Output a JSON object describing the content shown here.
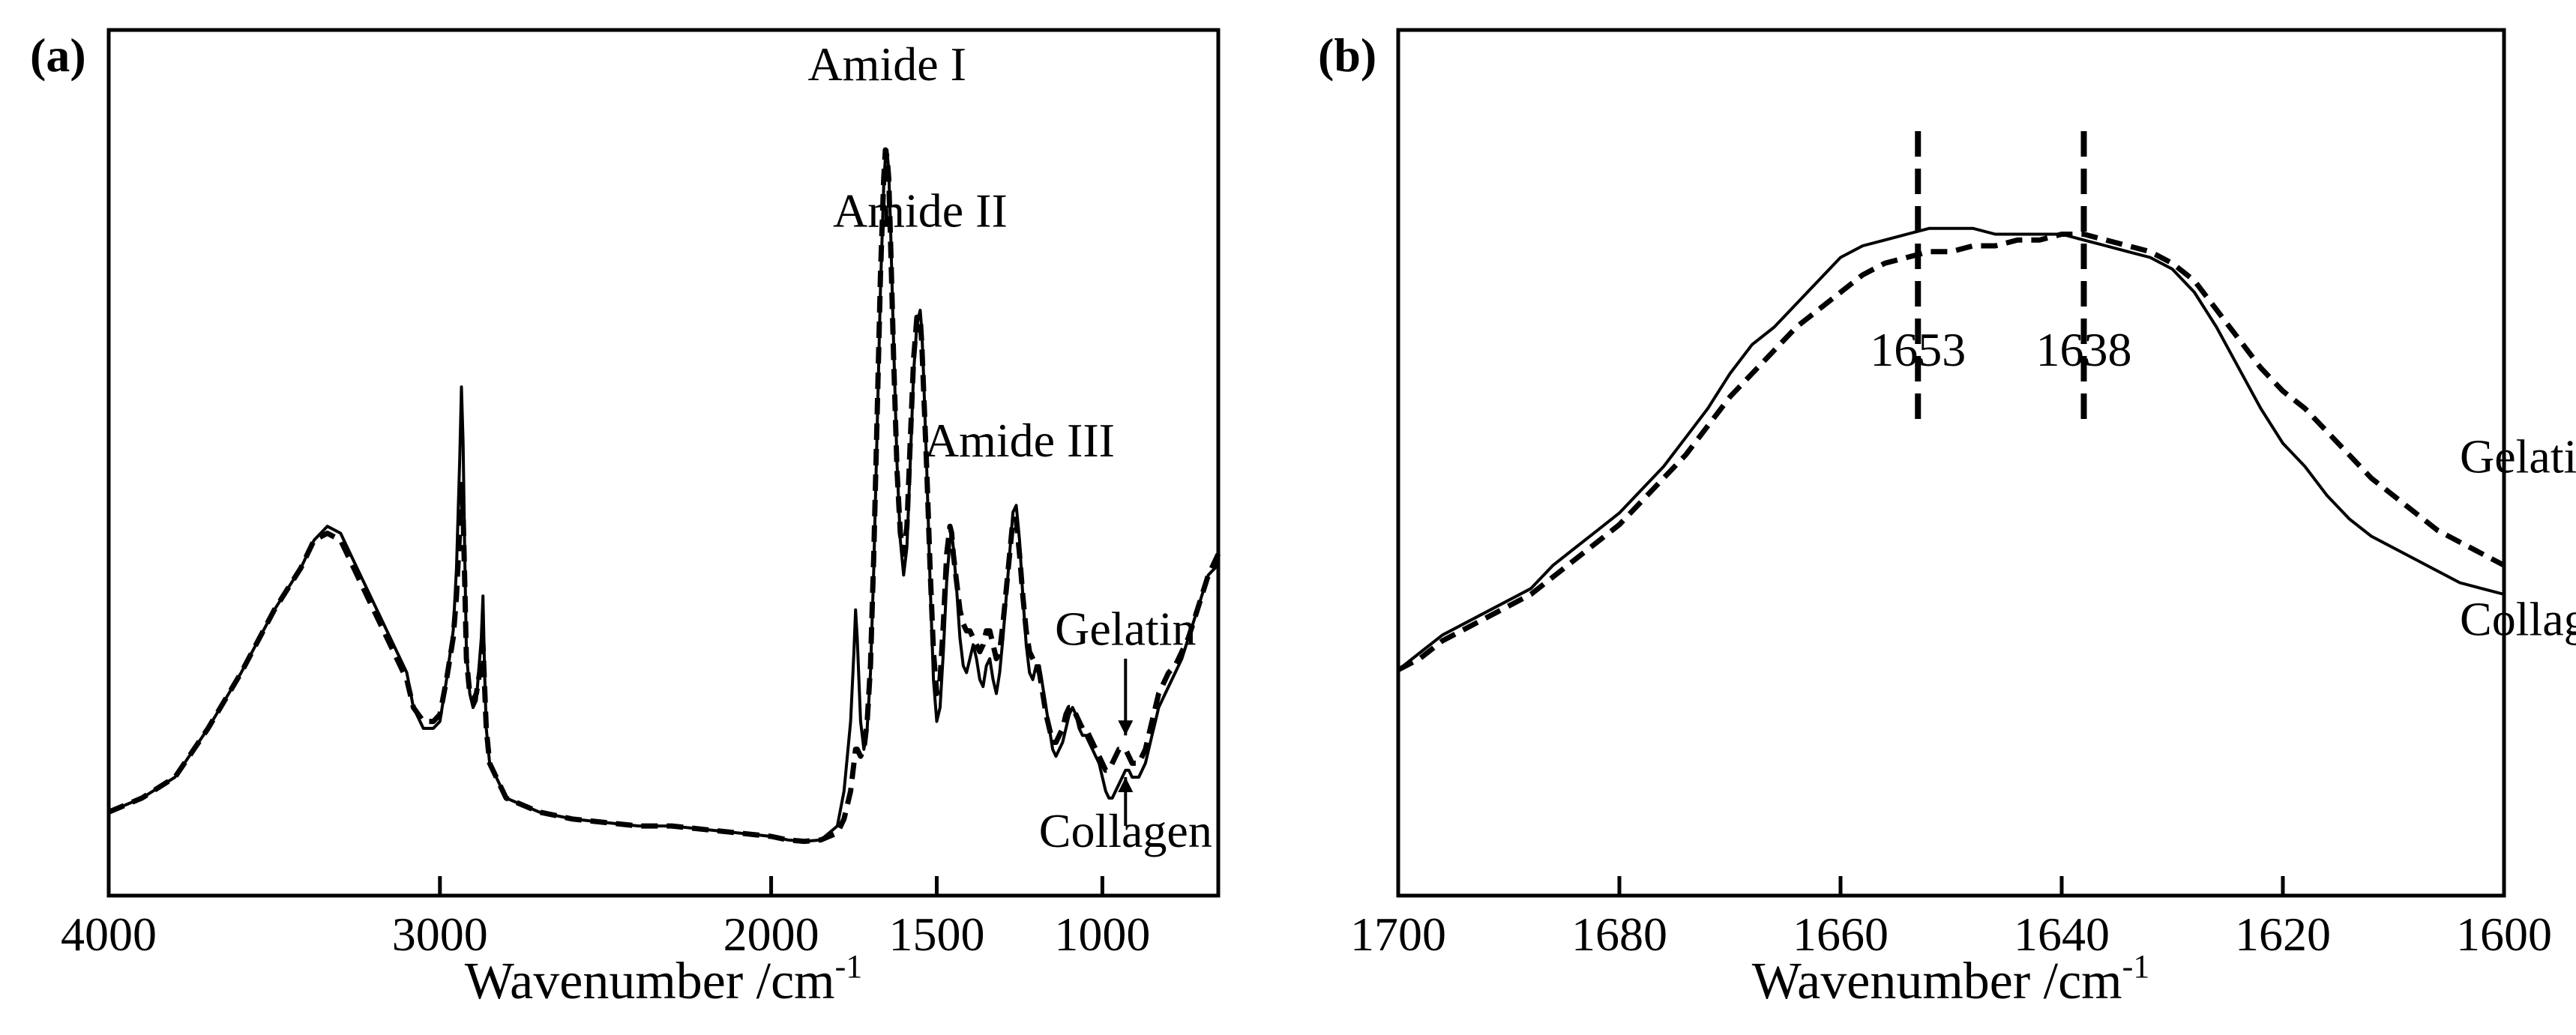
{
  "chart_data": [
    {
      "panel": "(a)",
      "type": "line",
      "xlabel": "Wavenumber /cm",
      "xlabel_sup": "-1",
      "ylabel": "",
      "x_reversed": true,
      "xlim": [
        4000,
        650
      ],
      "ylim": [
        0,
        1.0
      ],
      "xticks": [
        4000,
        3000,
        2000,
        1500,
        1000
      ],
      "tick_labels": [
        "4000",
        "3000",
        "2000",
        "1500",
        "1000"
      ],
      "series": [
        {
          "name": "Collagen",
          "style": "solid",
          "x": [
            4000,
            3900,
            3800,
            3700,
            3600,
            3500,
            3420,
            3380,
            3340,
            3300,
            3280,
            3250,
            3200,
            3150,
            3100,
            3080,
            3050,
            3020,
            3000,
            2980,
            2960,
            2950,
            2940,
            2935,
            2930,
            2925,
            2920,
            2910,
            2900,
            2890,
            2880,
            2875,
            2870,
            2865,
            2860,
            2850,
            2800,
            2700,
            2600,
            2500,
            2400,
            2300,
            2200,
            2100,
            2000,
            1950,
            1900,
            1850,
            1800,
            1780,
            1760,
            1750,
            1745,
            1740,
            1730,
            1720,
            1710,
            1700,
            1690,
            1680,
            1670,
            1660,
            1655,
            1650,
            1645,
            1640,
            1630,
            1620,
            1610,
            1600,
            1590,
            1580,
            1570,
            1560,
            1550,
            1545,
            1540,
            1530,
            1520,
            1510,
            1500,
            1490,
            1480,
            1470,
            1460,
            1455,
            1450,
            1440,
            1430,
            1420,
            1410,
            1400,
            1390,
            1380,
            1370,
            1360,
            1350,
            1340,
            1330,
            1320,
            1310,
            1300,
            1290,
            1280,
            1270,
            1260,
            1250,
            1240,
            1230,
            1220,
            1210,
            1200,
            1190,
            1180,
            1170,
            1160,
            1150,
            1140,
            1130,
            1120,
            1110,
            1100,
            1090,
            1080,
            1070,
            1060,
            1050,
            1040,
            1030,
            1020,
            1010,
            1000,
            990,
            980,
            970,
            960,
            950,
            940,
            930,
            920,
            910,
            900,
            890,
            880,
            870,
            860,
            850,
            840,
            830,
            820,
            810,
            800,
            780,
            760,
            740,
            720,
            700,
            680,
            660,
            650
          ],
          "y": [
            0.05,
            0.07,
            0.1,
            0.17,
            0.25,
            0.34,
            0.4,
            0.44,
            0.46,
            0.45,
            0.43,
            0.4,
            0.35,
            0.3,
            0.25,
            0.2,
            0.17,
            0.17,
            0.18,
            0.24,
            0.31,
            0.4,
            0.56,
            0.66,
            0.58,
            0.42,
            0.28,
            0.22,
            0.2,
            0.21,
            0.27,
            0.3,
            0.36,
            0.25,
            0.17,
            0.12,
            0.07,
            0.05,
            0.04,
            0.035,
            0.03,
            0.03,
            0.025,
            0.02,
            0.015,
            0.01,
            0.008,
            0.01,
            0.03,
            0.08,
            0.18,
            0.28,
            0.34,
            0.3,
            0.18,
            0.14,
            0.17,
            0.25,
            0.4,
            0.6,
            0.8,
            0.95,
            0.99,
            1.0,
            0.97,
            0.9,
            0.72,
            0.55,
            0.44,
            0.39,
            0.43,
            0.55,
            0.68,
            0.75,
            0.77,
            0.74,
            0.68,
            0.54,
            0.38,
            0.24,
            0.18,
            0.2,
            0.28,
            0.38,
            0.44,
            0.45,
            0.43,
            0.37,
            0.3,
            0.26,
            0.25,
            0.27,
            0.29,
            0.27,
            0.24,
            0.23,
            0.26,
            0.27,
            0.24,
            0.22,
            0.25,
            0.3,
            0.36,
            0.42,
            0.48,
            0.49,
            0.44,
            0.36,
            0.29,
            0.25,
            0.24,
            0.26,
            0.26,
            0.23,
            0.2,
            0.17,
            0.14,
            0.13,
            0.14,
            0.15,
            0.17,
            0.19,
            0.2,
            0.19,
            0.17,
            0.16,
            0.16,
            0.15,
            0.14,
            0.13,
            0.12,
            0.1,
            0.08,
            0.07,
            0.07,
            0.08,
            0.09,
            0.1,
            0.11,
            0.11,
            0.1,
            0.1,
            0.1,
            0.11,
            0.12,
            0.14,
            0.16,
            0.18,
            0.2,
            0.21,
            0.22,
            0.23,
            0.25,
            0.27,
            0.3,
            0.33,
            0.36,
            0.39,
            0.4,
            0.41
          ]
        },
        {
          "name": "Gelatin",
          "style": "dashed",
          "x": [
            4000,
            3900,
            3800,
            3700,
            3600,
            3500,
            3420,
            3380,
            3340,
            3300,
            3280,
            3250,
            3200,
            3150,
            3100,
            3080,
            3050,
            3020,
            3000,
            2980,
            2960,
            2950,
            2940,
            2935,
            2930,
            2925,
            2920,
            2910,
            2900,
            2890,
            2880,
            2875,
            2870,
            2865,
            2860,
            2850,
            2800,
            2700,
            2600,
            2500,
            2400,
            2300,
            2200,
            2100,
            2000,
            1950,
            1900,
            1850,
            1800,
            1780,
            1760,
            1750,
            1745,
            1740,
            1730,
            1720,
            1710,
            1700,
            1690,
            1680,
            1670,
            1660,
            1655,
            1650,
            1645,
            1640,
            1630,
            1620,
            1610,
            1600,
            1590,
            1580,
            1570,
            1560,
            1550,
            1545,
            1540,
            1530,
            1520,
            1510,
            1500,
            1490,
            1480,
            1470,
            1460,
            1455,
            1450,
            1440,
            1430,
            1420,
            1410,
            1400,
            1390,
            1380,
            1370,
            1360,
            1350,
            1340,
            1330,
            1320,
            1310,
            1300,
            1290,
            1280,
            1270,
            1260,
            1250,
            1240,
            1230,
            1220,
            1210,
            1200,
            1190,
            1180,
            1170,
            1160,
            1150,
            1140,
            1130,
            1120,
            1110,
            1100,
            1090,
            1080,
            1070,
            1060,
            1050,
            1040,
            1030,
            1020,
            1010,
            1000,
            990,
            980,
            970,
            960,
            950,
            940,
            930,
            920,
            910,
            900,
            890,
            880,
            870,
            860,
            850,
            840,
            830,
            820,
            810,
            800,
            780,
            760,
            740,
            720,
            700,
            680,
            660,
            650
          ],
          "y": [
            0.05,
            0.07,
            0.1,
            0.17,
            0.25,
            0.34,
            0.4,
            0.44,
            0.45,
            0.44,
            0.42,
            0.39,
            0.34,
            0.29,
            0.24,
            0.2,
            0.18,
            0.18,
            0.19,
            0.24,
            0.3,
            0.36,
            0.46,
            0.52,
            0.48,
            0.38,
            0.27,
            0.22,
            0.21,
            0.22,
            0.25,
            0.27,
            0.29,
            0.23,
            0.17,
            0.12,
            0.07,
            0.05,
            0.04,
            0.035,
            0.03,
            0.03,
            0.025,
            0.02,
            0.015,
            0.01,
            0.008,
            0.01,
            0.02,
            0.04,
            0.08,
            0.12,
            0.14,
            0.14,
            0.13,
            0.14,
            0.18,
            0.26,
            0.42,
            0.62,
            0.82,
            0.96,
            1.0,
            0.99,
            0.96,
            0.88,
            0.7,
            0.54,
            0.45,
            0.42,
            0.46,
            0.58,
            0.7,
            0.76,
            0.76,
            0.72,
            0.66,
            0.54,
            0.4,
            0.28,
            0.22,
            0.24,
            0.32,
            0.42,
            0.46,
            0.45,
            0.42,
            0.38,
            0.34,
            0.32,
            0.31,
            0.31,
            0.3,
            0.29,
            0.28,
            0.29,
            0.31,
            0.31,
            0.29,
            0.27,
            0.28,
            0.32,
            0.37,
            0.42,
            0.47,
            0.47,
            0.42,
            0.36,
            0.31,
            0.28,
            0.27,
            0.26,
            0.25,
            0.22,
            0.19,
            0.17,
            0.15,
            0.15,
            0.16,
            0.17,
            0.19,
            0.2,
            0.2,
            0.19,
            0.18,
            0.17,
            0.17,
            0.16,
            0.15,
            0.14,
            0.13,
            0.12,
            0.11,
            0.11,
            0.12,
            0.13,
            0.14,
            0.14,
            0.14,
            0.13,
            0.12,
            0.12,
            0.12,
            0.13,
            0.14,
            0.16,
            0.18,
            0.2,
            0.22,
            0.23,
            0.24,
            0.25,
            0.26,
            0.28,
            0.3,
            0.33,
            0.36,
            0.39,
            0.41,
            0.42
          ]
        }
      ],
      "annotations": [
        {
          "text": "Amide I",
          "x": 1650,
          "y": 1.1
        },
        {
          "text": "Amide II",
          "x": 1550,
          "y": 0.89
        },
        {
          "text": "Amide III",
          "x": 1250,
          "y": 0.56
        },
        {
          "text": "Gelatin",
          "x": 930,
          "y": 0.29
        },
        {
          "text": "Collagen",
          "x": 930,
          "y": 0.0
        }
      ],
      "arrows": [
        {
          "from_y": 0.27,
          "to_y": 0.16,
          "x": 930
        },
        {
          "from_y": 0.03,
          "to_y": 0.1,
          "x": 930
        }
      ]
    },
    {
      "panel": "(b)",
      "type": "line",
      "xlabel": "Wavenumber /cm",
      "xlabel_sup": "-1",
      "ylabel": "",
      "x_reversed": true,
      "xlim": [
        1700,
        1600
      ],
      "ylim": [
        0,
        1.0
      ],
      "xticks": [
        1700,
        1680,
        1660,
        1640,
        1620,
        1600
      ],
      "tick_labels": [
        "1700",
        "1680",
        "1660",
        "1640",
        "1620",
        "1600"
      ],
      "series": [
        {
          "name": "Collagen",
          "style": "solid",
          "x": [
            1700,
            1698,
            1696,
            1694,
            1692,
            1690,
            1688,
            1686,
            1684,
            1682,
            1680,
            1678,
            1676,
            1674,
            1672,
            1670,
            1668,
            1666,
            1664,
            1662,
            1660,
            1658,
            1656,
            1654,
            1652,
            1650,
            1648,
            1646,
            1644,
            1642,
            1640,
            1638,
            1636,
            1634,
            1632,
            1630,
            1628,
            1626,
            1624,
            1622,
            1620,
            1618,
            1616,
            1614,
            1612,
            1610,
            1608,
            1606,
            1604,
            1602,
            1600
          ],
          "y": [
            0.15,
            0.18,
            0.21,
            0.23,
            0.25,
            0.27,
            0.29,
            0.33,
            0.36,
            0.39,
            0.42,
            0.46,
            0.5,
            0.55,
            0.6,
            0.66,
            0.71,
            0.74,
            0.78,
            0.82,
            0.86,
            0.88,
            0.89,
            0.9,
            0.91,
            0.91,
            0.91,
            0.9,
            0.9,
            0.9,
            0.9,
            0.89,
            0.88,
            0.87,
            0.86,
            0.84,
            0.8,
            0.74,
            0.67,
            0.6,
            0.54,
            0.5,
            0.45,
            0.41,
            0.38,
            0.36,
            0.34,
            0.32,
            0.3,
            0.29,
            0.28
          ]
        },
        {
          "name": "Gelatin",
          "style": "dashed",
          "x": [
            1700,
            1698,
            1696,
            1694,
            1692,
            1690,
            1688,
            1686,
            1684,
            1682,
            1680,
            1678,
            1676,
            1674,
            1672,
            1670,
            1668,
            1666,
            1664,
            1662,
            1660,
            1658,
            1656,
            1654,
            1652,
            1650,
            1648,
            1646,
            1644,
            1642,
            1640,
            1638,
            1636,
            1634,
            1632,
            1630,
            1628,
            1626,
            1624,
            1622,
            1620,
            1618,
            1616,
            1614,
            1612,
            1610,
            1608,
            1606,
            1604,
            1602,
            1600
          ],
          "y": [
            0.15,
            0.17,
            0.2,
            0.22,
            0.24,
            0.26,
            0.28,
            0.31,
            0.34,
            0.37,
            0.4,
            0.44,
            0.48,
            0.52,
            0.57,
            0.62,
            0.66,
            0.7,
            0.74,
            0.77,
            0.8,
            0.83,
            0.85,
            0.86,
            0.87,
            0.87,
            0.88,
            0.88,
            0.89,
            0.89,
            0.9,
            0.9,
            0.89,
            0.88,
            0.87,
            0.85,
            0.82,
            0.77,
            0.72,
            0.67,
            0.63,
            0.6,
            0.56,
            0.52,
            0.48,
            0.45,
            0.42,
            0.39,
            0.37,
            0.35,
            0.33
          ]
        }
      ],
      "vlines": [
        {
          "x": 1653,
          "label": "1653"
        },
        {
          "x": 1638,
          "label": "1638"
        }
      ],
      "annotations": [
        {
          "text": "Gelatin",
          "x": 1604,
          "y": 0.49
        },
        {
          "text": "Collagen",
          "x": 1604,
          "y": 0.21
        }
      ]
    }
  ]
}
